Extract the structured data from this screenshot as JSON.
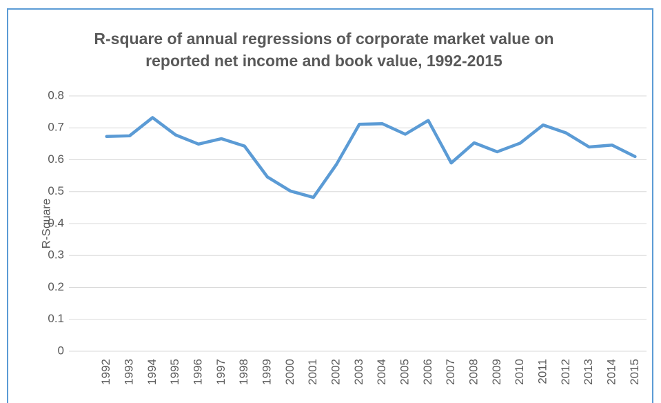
{
  "chart_data": {
    "type": "line",
    "title": "R-square of annual regressions of corporate market value on reported net income and book value, 1992-2015",
    "y_label": "R-Square",
    "categories": [
      "1992",
      "1993",
      "1994",
      "1995",
      "1996",
      "1997",
      "1998",
      "1999",
      "2000",
      "2001",
      "2002",
      "2003",
      "2004",
      "2005",
      "2006",
      "2007",
      "2008",
      "2009",
      "2010",
      "2011",
      "2012",
      "2013",
      "2014",
      "2015"
    ],
    "values": [
      0.673,
      0.675,
      0.732,
      0.678,
      0.649,
      0.666,
      0.643,
      0.546,
      0.502,
      0.482,
      0.585,
      0.711,
      0.713,
      0.68,
      0.723,
      0.59,
      0.653,
      0.625,
      0.652,
      0.709,
      0.684,
      0.64,
      0.646,
      0.61
    ],
    "color": "#5b9bd5",
    "ylim": [
      0,
      0.8
    ],
    "yticks": [
      0,
      0.1,
      0.2,
      0.3,
      0.4,
      0.5,
      0.6,
      0.7,
      0.8
    ],
    "grid": true
  }
}
